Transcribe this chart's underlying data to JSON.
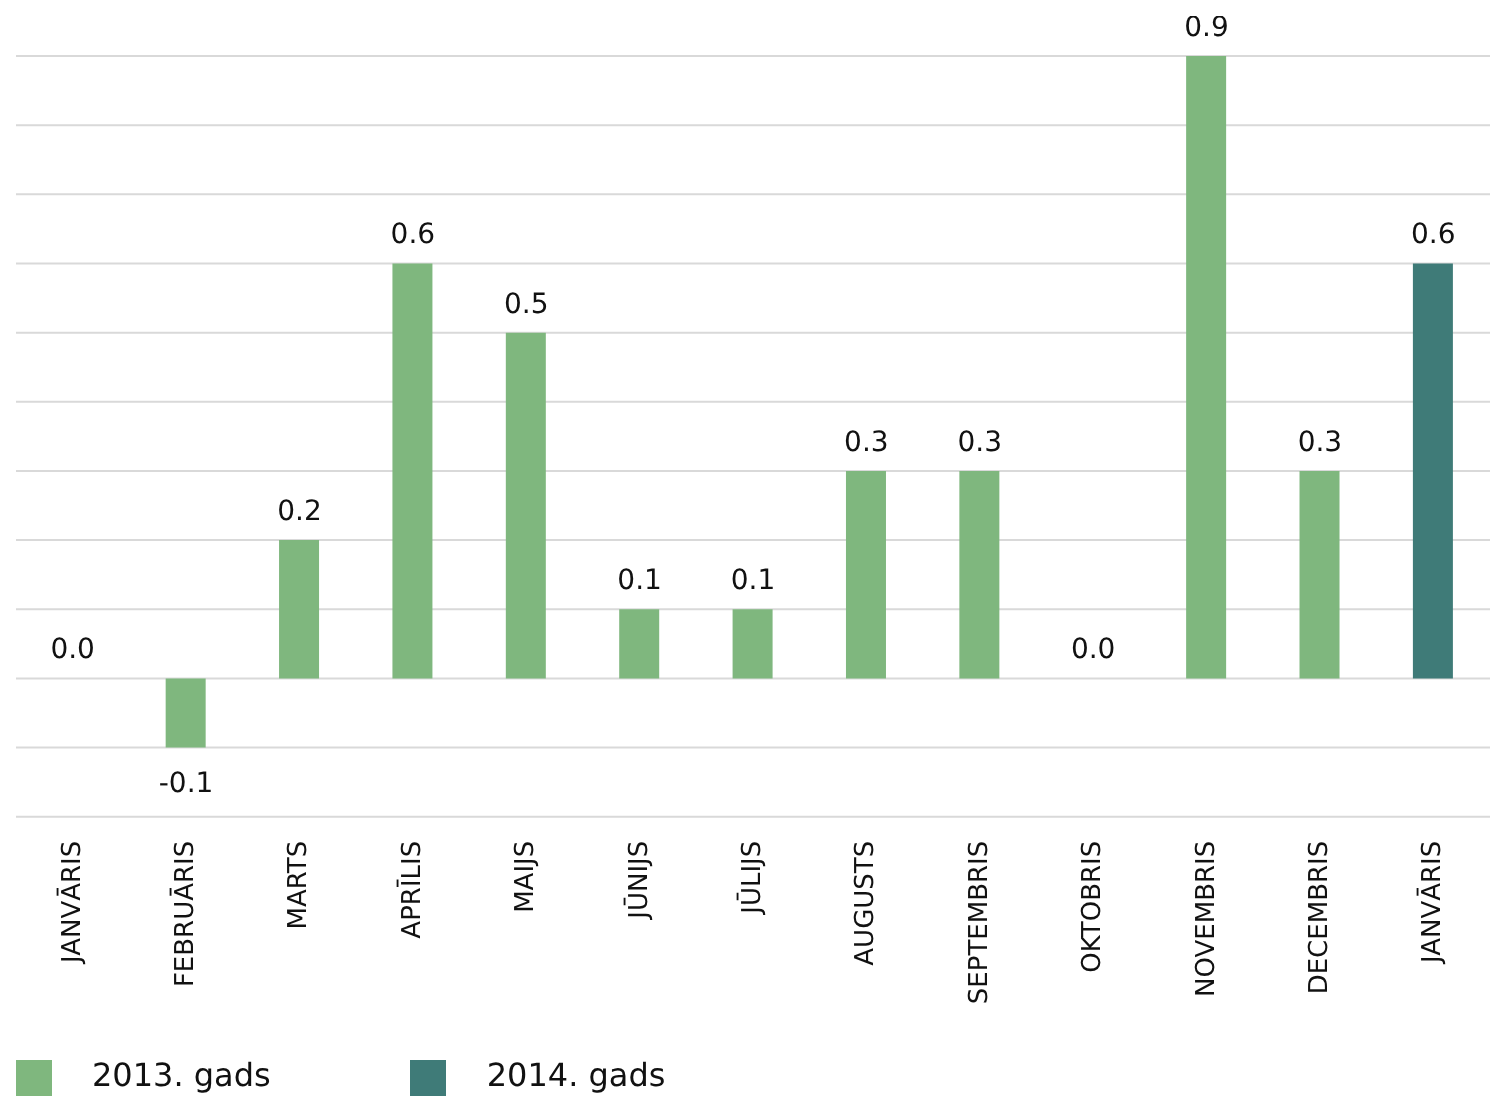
{
  "chart_data": {
    "type": "bar",
    "categories": [
      "JANVĀRIS",
      "FEBRUĀRIS",
      "MARTS",
      "APRĪLIS",
      "MAIJS",
      "JŪNIJS",
      "JŪLIJS",
      "AUGUSTS",
      "SEPTEMBRIS",
      "OKTOBRIS",
      "NOVEMBRIS",
      "DECEMBRIS",
      "JANVĀRIS"
    ],
    "series": [
      {
        "name": "2013. gads",
        "color": "#7fb77e",
        "values": [
          0.0,
          -0.1,
          0.2,
          0.6,
          0.5,
          0.1,
          0.1,
          0.3,
          0.3,
          0.0,
          0.9,
          0.3,
          null
        ],
        "value_labels": [
          "0.0",
          "-0.1",
          "0.2",
          "0.6",
          "0.5",
          "0.1",
          "0.1",
          "0.3",
          "0.3",
          "0.0",
          "0.9",
          "0.3",
          null
        ]
      },
      {
        "name": "2014. gads",
        "color": "#3f7b78",
        "values": [
          null,
          null,
          null,
          null,
          null,
          null,
          null,
          null,
          null,
          null,
          null,
          null,
          0.6
        ],
        "value_labels": [
          null,
          null,
          null,
          null,
          null,
          null,
          null,
          null,
          null,
          null,
          null,
          null,
          "0.6"
        ]
      }
    ],
    "stacked": true,
    "ylim": [
      -0.2,
      0.9
    ],
    "yticks": [
      {
        "value": -0.2,
        "label": null
      },
      {
        "value": -0.1,
        "label": null
      },
      {
        "value": 0,
        "label": null
      },
      {
        "value": 0.1,
        "label": null
      },
      {
        "value": 0.2,
        "label": null
      },
      {
        "value": 0.3,
        "label": null
      },
      {
        "value": 0.4,
        "label": null
      },
      {
        "value": 0.5,
        "label": null
      },
      {
        "value": 0.6,
        "label": null
      },
      {
        "value": 0.7,
        "label": null
      },
      {
        "value": 0.8,
        "label": null
      },
      {
        "value": 0.9,
        "label": null
      }
    ],
    "grid": "y",
    "tick_labels": "x",
    "legend": "bottom left"
  }
}
